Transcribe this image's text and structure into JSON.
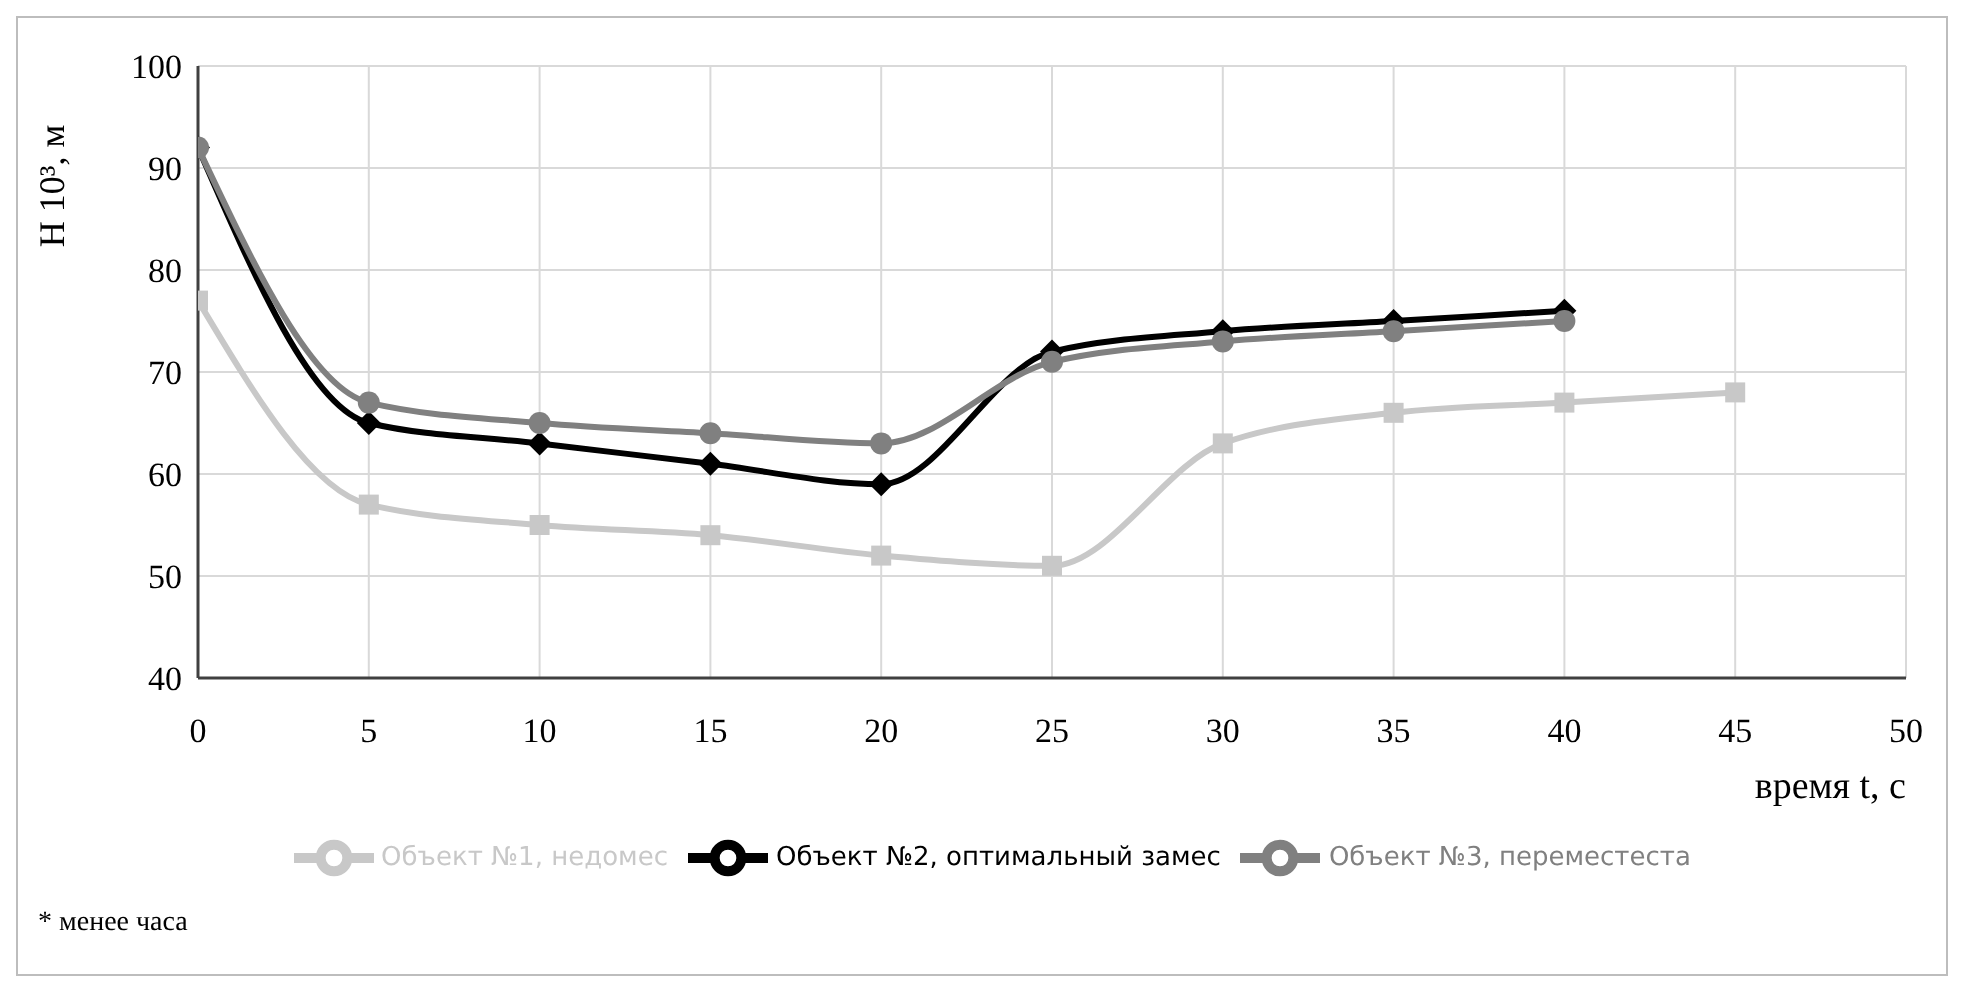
{
  "chart_data": {
    "type": "line",
    "xlabel": "время t, с",
    "ylabel": "Н 10³, м",
    "xlim": [
      0,
      50
    ],
    "xticks": [
      0,
      5,
      10,
      15,
      20,
      25,
      30,
      35,
      40,
      45,
      50
    ],
    "ylim": [
      40,
      100
    ],
    "yticks": [
      40,
      50,
      60,
      70,
      80,
      90,
      100
    ],
    "grid": true,
    "legend": "bottom",
    "line_style": "solid",
    "series": [
      {
        "name": "Объект №1, недомес",
        "color": "#c8c8c8",
        "marker": "square",
        "x": [
          0,
          5,
          10,
          15,
          20,
          25,
          30,
          35,
          40,
          45
        ],
        "values": [
          77,
          57,
          55,
          54,
          52,
          51,
          63,
          66,
          67,
          68
        ]
      },
      {
        "name": "Объект №2, оптимальный замес",
        "color": "#000000",
        "marker": "diamond",
        "x": [
          0,
          5,
          10,
          15,
          20,
          25,
          30,
          35,
          40
        ],
        "values": [
          92,
          65,
          63,
          61,
          59,
          72,
          74,
          75,
          76
        ]
      },
      {
        "name": "Объект №3, переместеста",
        "color": "#808080",
        "marker": "circle",
        "x": [
          0,
          5,
          10,
          15,
          20,
          25,
          30,
          35,
          40
        ],
        "values": [
          92,
          67,
          65,
          64,
          63,
          71,
          73,
          74,
          75
        ]
      }
    ],
    "annotations": [
      "* менее часа"
    ]
  }
}
